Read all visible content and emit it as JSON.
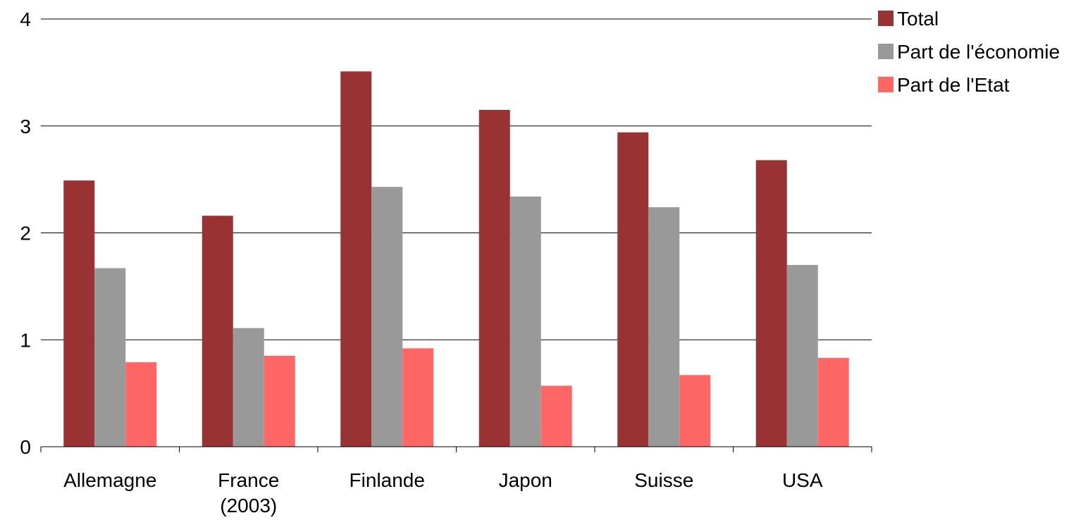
{
  "chart_data": {
    "type": "bar",
    "title": "",
    "xlabel": "",
    "ylabel": "",
    "categories": [
      [
        "Allemagne"
      ],
      [
        "France",
        "(2003)"
      ],
      [
        "Finlande"
      ],
      [
        "Japon"
      ],
      [
        "Suisse"
      ],
      [
        "USA"
      ]
    ],
    "series": [
      {
        "name": "Total",
        "color": "#993333",
        "values": [
          2.49,
          2.16,
          3.51,
          3.15,
          2.94,
          2.68
        ]
      },
      {
        "name": "Part de l'économie",
        "color": "#999999",
        "values": [
          1.67,
          1.11,
          2.43,
          2.34,
          2.24,
          1.7
        ]
      },
      {
        "name": "Part de l'Etat",
        "color": "#ff6666",
        "values": [
          0.79,
          0.85,
          0.92,
          0.57,
          0.67,
          0.83
        ]
      }
    ],
    "y_ticks": [
      "0",
      "1",
      "2",
      "3",
      "4"
    ],
    "ylim": [
      0,
      4
    ],
    "grid": true,
    "legend_position": "top-right"
  }
}
